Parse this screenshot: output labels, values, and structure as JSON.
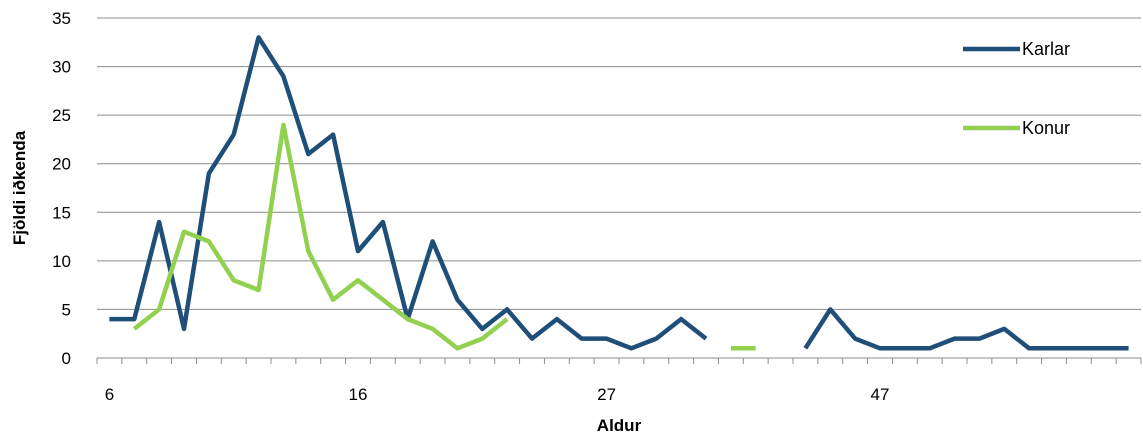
{
  "chart_data": {
    "type": "line",
    "xlabel": "Aldur",
    "ylabel": "Fjöldi iðkenda",
    "ylim": [
      0,
      35
    ],
    "yticks": [
      "0",
      "5",
      "10",
      "15",
      "20",
      "25",
      "30",
      "35"
    ],
    "x_tick_labels": [
      "6",
      "16",
      "27",
      "47"
    ],
    "grid": "horizontal",
    "legend_position": "top-right",
    "series": [
      {
        "name": "Karlar",
        "color": "#1f4e79",
        "values": [
          4,
          4,
          14,
          3,
          19,
          23,
          33,
          29,
          21,
          23,
          11,
          14,
          4,
          12,
          6,
          3,
          5,
          2,
          4,
          2,
          2,
          1,
          2,
          4,
          2,
          null,
          null,
          null,
          1,
          5,
          2,
          1,
          1,
          1,
          2,
          2,
          3,
          1,
          1,
          1,
          1,
          1
        ]
      },
      {
        "name": "Konur",
        "color": "#92d050",
        "values": [
          null,
          3,
          5,
          13,
          12,
          8,
          7,
          24,
          11,
          6,
          8,
          6,
          4,
          3,
          1,
          2,
          4,
          null,
          null,
          null,
          null,
          null,
          null,
          null,
          null,
          1,
          1,
          null,
          null,
          null,
          null,
          null,
          null,
          null,
          null,
          null,
          null,
          null,
          null,
          null,
          null,
          null
        ]
      }
    ]
  }
}
